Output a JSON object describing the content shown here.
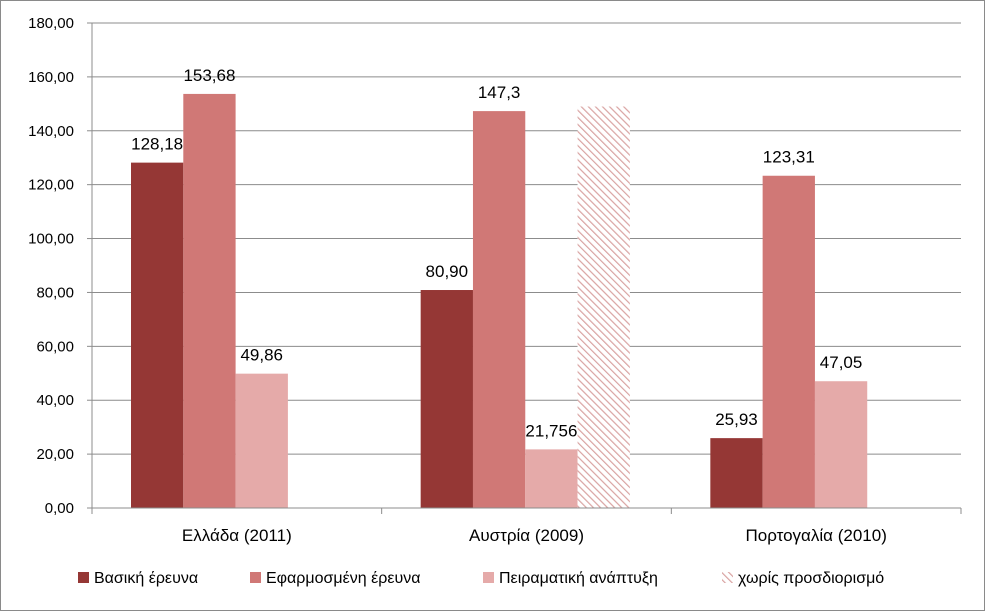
{
  "chart_data": {
    "type": "bar",
    "categories": [
      "Ελλάδα (2011)",
      "Αυστρία (2009)",
      "Πορτογαλία (2010)"
    ],
    "ylim": [
      0,
      180
    ],
    "yticks": [
      "0,00",
      "20,00",
      "40,00",
      "60,00",
      "80,00",
      "100,00",
      "120,00",
      "140,00",
      "160,00",
      "180,00"
    ],
    "grid": true,
    "legend_position": "bottom",
    "series": [
      {
        "name": "Βασική έρευνα",
        "color": "#953735",
        "pattern": "solid",
        "values": [
          128.18,
          80.9,
          25.93
        ],
        "labels": [
          "128,18",
          "80,90",
          "25,93"
        ]
      },
      {
        "name": "Εφαρμοσμένη έρευνα",
        "color": "#d07876",
        "pattern": "solid",
        "values": [
          153.68,
          147.3,
          123.31
        ],
        "labels": [
          "153,68",
          "147,3",
          "123,31"
        ]
      },
      {
        "name": "Πειραματική ανάπτυξη",
        "color": "#e5aaa9",
        "pattern": "solid",
        "values": [
          49.86,
          21.756,
          47.05
        ],
        "labels": [
          "49,86",
          "21,756",
          "47,05"
        ]
      },
      {
        "name": "χωρίς προσδιορισμό",
        "color": "#d9a3a2",
        "pattern": "diagonal-hatch",
        "values": [
          null,
          149,
          null
        ],
        "labels": [
          null,
          null,
          null
        ]
      }
    ]
  }
}
